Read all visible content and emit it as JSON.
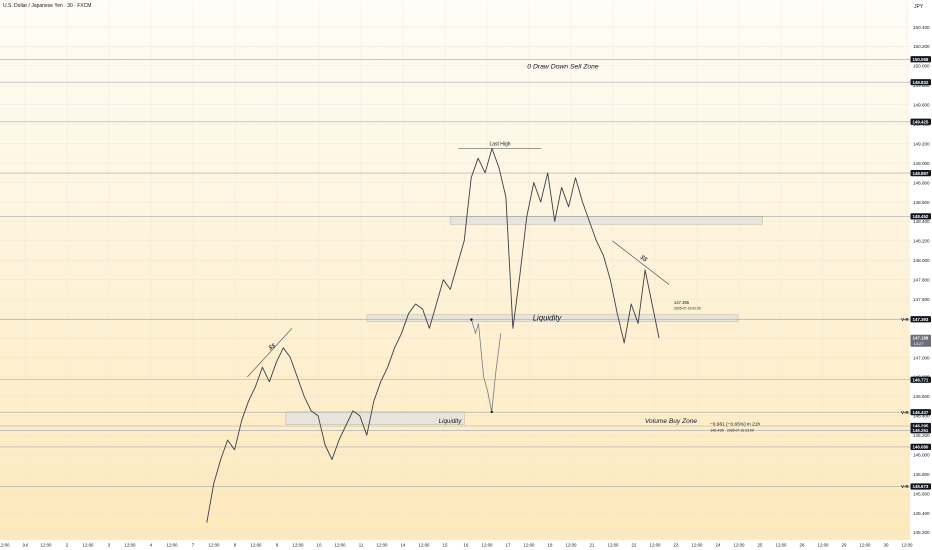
{
  "header": {
    "symbol_title": "U.S. Dollar / Japanese Yen · 30 · FXCM",
    "currency": "JPY"
  },
  "chart_data": {
    "type": "line",
    "title": "U.S. Dollar / Japanese Yen · 30 · FXCM",
    "ylim": [
      145.25,
      150.5
    ],
    "price_ticks": [
      "150.400",
      "150.200",
      "150.000",
      "149.800",
      "149.600",
      "149.400",
      "149.200",
      "149.000",
      "148.800",
      "148.600",
      "148.400",
      "148.200",
      "148.000",
      "147.800",
      "147.600",
      "147.400",
      "147.200",
      "147.000",
      "146.800",
      "146.600",
      "146.400",
      "146.200",
      "146.000",
      "145.800",
      "145.600",
      "145.400",
      "145.200"
    ],
    "price_tick_values": [
      150.4,
      150.2,
      150.0,
      149.8,
      149.6,
      149.4,
      149.2,
      149.0,
      148.8,
      148.6,
      148.4,
      148.2,
      148.0,
      147.8,
      147.6,
      147.4,
      147.2,
      147.0,
      146.8,
      146.6,
      146.4,
      146.2,
      146.0,
      145.8,
      145.6,
      145.4,
      145.2
    ],
    "time_ticks": [
      "12:00",
      "Jul",
      "12:00",
      "2",
      "12:00",
      "3",
      "12:00",
      "4",
      "12:00",
      "7",
      "12:00",
      "8",
      "12:00",
      "9",
      "12:00",
      "10",
      "12:00",
      "11",
      "12:00",
      "14",
      "12:00",
      "15",
      "16",
      "12:00",
      "17",
      "12:00",
      "18",
      "12:00",
      "21",
      "12:00",
      "22",
      "12:00",
      "23",
      "12:00",
      "24",
      "12:00",
      "25",
      "12:00",
      "28",
      "12:00",
      "29",
      "12:00",
      "30",
      "12:00"
    ],
    "grid": true,
    "level_badges": [
      {
        "value": 150.068,
        "label": "150.068"
      },
      {
        "value": 149.832,
        "label": "149.832"
      },
      {
        "value": 149.425,
        "label": "149.425"
      },
      {
        "value": 148.897,
        "label": "148.897"
      },
      {
        "value": 148.452,
        "label": "148.452"
      },
      {
        "value": 147.393,
        "label": "147.393"
      },
      {
        "value": 146.771,
        "label": "146.771"
      },
      {
        "value": 146.437,
        "label": "146.437"
      },
      {
        "value": 146.295,
        "label": "146.295"
      },
      {
        "value": 146.251,
        "label": "146.251"
      },
      {
        "value": 146.08,
        "label": "146.080"
      },
      {
        "value": 145.673,
        "label": "145.673"
      }
    ],
    "vr_levels": [
      {
        "value": 147.393,
        "label": "V-R"
      },
      {
        "value": 146.437,
        "label": "V-R"
      },
      {
        "value": 145.673,
        "label": "V-R"
      }
    ],
    "current_price": {
      "value": 147.188,
      "label": "147.188",
      "countdown": "13:27"
    },
    "price_series": [
      145.3,
      145.7,
      145.95,
      146.15,
      146.05,
      146.35,
      146.55,
      146.7,
      146.9,
      146.75,
      146.95,
      147.1,
      147.0,
      146.8,
      146.6,
      146.45,
      146.4,
      146.1,
      145.95,
      146.15,
      146.3,
      146.45,
      146.4,
      146.2,
      146.55,
      146.75,
      146.9,
      147.1,
      147.25,
      147.45,
      147.55,
      147.5,
      147.3,
      147.55,
      147.8,
      147.7,
      147.95,
      148.2,
      148.85,
      149.05,
      148.9,
      149.15,
      148.95,
      148.65,
      147.3,
      147.85,
      148.45,
      148.8,
      148.6,
      148.9,
      148.4,
      148.75,
      148.55,
      148.85,
      148.6,
      148.4,
      148.2,
      148.05,
      147.8,
      147.45,
      147.15,
      147.55,
      147.35,
      147.9,
      147.55,
      147.2
    ],
    "projection": [
      {
        "day": 22.95,
        "value": 147.39
      },
      {
        "day": 23.15,
        "value": 147.25
      },
      {
        "day": 23.3,
        "value": 147.35
      },
      {
        "day": 23.55,
        "value": 146.8
      },
      {
        "day": 23.75,
        "value": 146.65
      },
      {
        "day": 23.95,
        "value": 146.44
      },
      {
        "day": 24.15,
        "value": 146.85
      },
      {
        "day": 24.4,
        "value": 147.25
      }
    ],
    "annotations": {
      "draw_down_zone": "0 Draw Down Sell Zone",
      "last_high": "Last High",
      "liquidity_upper": "Liquidity",
      "liquidity_lower": "Liquidity",
      "volume_buy_zone": "Volume Buy Zone",
      "sweep_left": "$$",
      "sweep_right": "$$",
      "marker_price": "147.395",
      "marker_time": "2025-07-23 02:00",
      "measure_change": "−0.961 (−0.65%) in 21h",
      "measure_target": "146.435",
      "measure_time": "2025-07-23  23:00"
    },
    "colors": {
      "price": "#3b3f48",
      "projection": "#787b86",
      "badge": "#131722",
      "bg_top": "#fffdf7",
      "bg_bottom": "#fde8b8"
    }
  }
}
